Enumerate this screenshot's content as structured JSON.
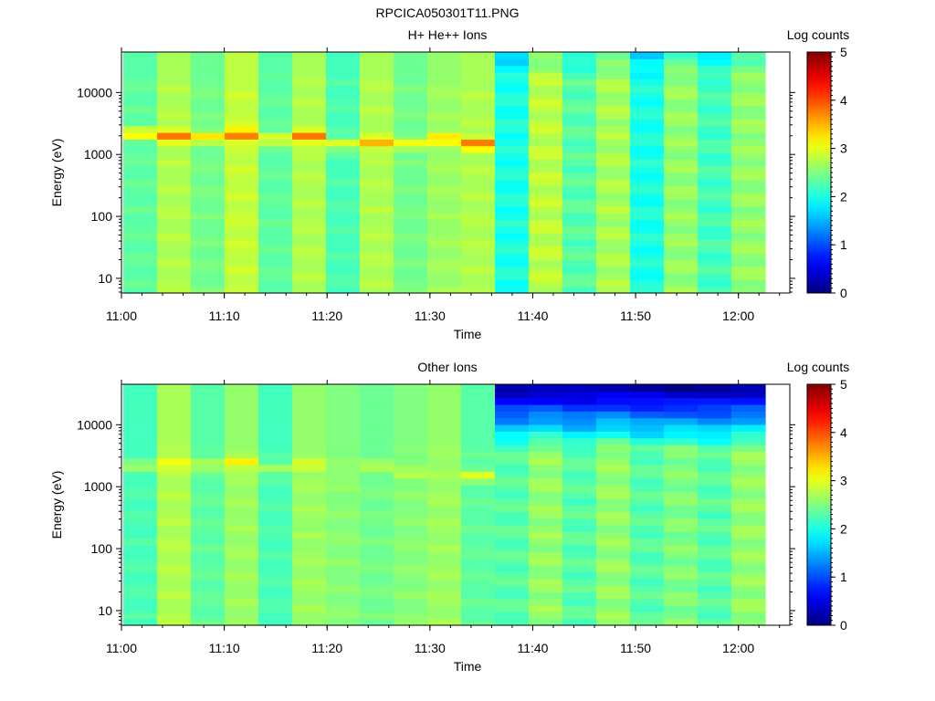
{
  "figure": {
    "title": "RPCICA050301T11.PNG"
  },
  "chart_data": [
    {
      "type": "heatmap",
      "title": "H+ He++ Ions",
      "xlabel": "Time",
      "ylabel": "Energy (eV)",
      "yscale": "log",
      "x_tick_labels": [
        "11:00",
        "11:10",
        "11:20",
        "11:30",
        "11:40",
        "11:50",
        "12:00"
      ],
      "y_tick_labels": [
        "10",
        "100",
        "1000",
        "10000"
      ],
      "x_bins": [
        "11:00",
        "11:03",
        "11:06",
        "11:10",
        "11:13",
        "11:16",
        "11:19",
        "11:22",
        "11:26",
        "11:29",
        "11:32",
        "11:35",
        "11:38",
        "11:42",
        "11:45",
        "11:48",
        "11:51",
        "11:54",
        "11:58"
      ],
      "peak_energy_ev": [
        2200,
        2000,
        1900,
        2100,
        1800,
        2000,
        1500,
        1600,
        1500,
        1800,
        1500
      ],
      "peak_log_counts": [
        3.3,
        3.8,
        3.3,
        3.8,
        3.1,
        3.8,
        3.0,
        3.5,
        3.1,
        3.4,
        3.8
      ],
      "background_log_counts": [
        2.3,
        2.7,
        2.4,
        2.8,
        2.3,
        2.7,
        2.2,
        2.7,
        2.4,
        2.6,
        2.7,
        2.0,
        2.8,
        2.3,
        2.7,
        2.0,
        2.6,
        2.2,
        2.6
      ],
      "colorbar": {
        "label": "Log counts",
        "range": [
          0,
          5
        ],
        "tick_labels": [
          "0",
          "1",
          "2",
          "3",
          "4",
          "5"
        ]
      }
    },
    {
      "type": "heatmap",
      "title": "Other Ions",
      "xlabel": "Time",
      "ylabel": "Energy (eV)",
      "yscale": "log",
      "x_tick_labels": [
        "11:00",
        "11:10",
        "11:20",
        "11:30",
        "11:40",
        "11:50",
        "12:00"
      ],
      "y_tick_labels": [
        "10",
        "100",
        "1000",
        "10000"
      ],
      "x_bins": [
        "11:00",
        "11:03",
        "11:06",
        "11:10",
        "11:13",
        "11:16",
        "11:19",
        "11:22",
        "11:26",
        "11:29",
        "11:32",
        "11:35",
        "11:38",
        "11:42",
        "11:45",
        "11:48",
        "11:51",
        "11:54",
        "11:58"
      ],
      "peak_energy_ev": [
        2200,
        2400,
        2300,
        2500,
        2000,
        2300,
        1400,
        2200,
        1700,
        1600,
        1500
      ],
      "peak_log_counts": [
        2.7,
        3.1,
        2.8,
        3.2,
        2.7,
        3.0,
        2.6,
        2.8,
        2.8,
        2.7,
        3.0
      ],
      "background_log_counts": [
        2.2,
        2.7,
        2.3,
        2.6,
        2.2,
        2.6,
        2.5,
        2.4,
        2.5,
        2.6,
        2.3,
        2.3,
        2.6,
        2.3,
        2.6,
        2.3,
        2.5,
        2.3,
        2.6
      ],
      "colorbar": {
        "label": "Log counts",
        "range": [
          0,
          5
        ],
        "tick_labels": [
          "0",
          "1",
          "2",
          "3",
          "4",
          "5"
        ]
      }
    }
  ]
}
